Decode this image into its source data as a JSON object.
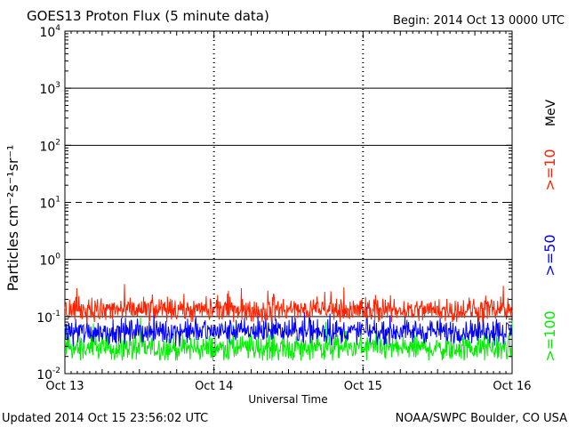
{
  "header": {
    "title": "GOES13 Proton Flux (5 minute data)",
    "begin": "Begin: 2014 Oct 13 0000 UTC"
  },
  "footer": {
    "updated": "Updated 2014 Oct 15 23:56:02 UTC",
    "credit": "NOAA/SWPC Boulder, CO USA"
  },
  "chart_data": {
    "type": "line",
    "title": "GOES13 Proton Flux (5 minute data)",
    "xlabel": "Universal Time",
    "ylabel": "Particles cm⁻²s⁻¹sr⁻¹",
    "yscale": "log",
    "ylim": [
      0.01,
      10000
    ],
    "y_ticks": [
      {
        "base": "10",
        "exp": "4"
      },
      {
        "base": "10",
        "exp": "3"
      },
      {
        "base": "10",
        "exp": "2"
      },
      {
        "base": "10",
        "exp": "1"
      },
      {
        "base": "10",
        "exp": "0"
      },
      {
        "base": "10",
        "exp": "-1"
      },
      {
        "base": "10",
        "exp": "-2"
      }
    ],
    "x_ticks": [
      "Oct 13",
      "Oct 14",
      "Oct 15",
      "Oct 16"
    ],
    "xlim": [
      "2014-10-13",
      "2014-10-16"
    ],
    "unit_label": "MeV",
    "horizontal_lines": [
      {
        "value": 1000,
        "style": "solid"
      },
      {
        "value": 100,
        "style": "solid"
      },
      {
        "value": 10,
        "style": "dashed"
      },
      {
        "value": 1,
        "style": "solid"
      },
      {
        "value": 0.1,
        "style": "solid"
      }
    ],
    "series": [
      {
        "name": ">=10",
        "color": "#ff2200",
        "typical": 0.13,
        "range": [
          0.08,
          0.4
        ]
      },
      {
        "name": ">=50",
        "color": "#0000ff",
        "typical": 0.055,
        "range": [
          0.03,
          0.15
        ]
      },
      {
        "name": ">=100",
        "color": "#00ee00",
        "typical": 0.028,
        "range": [
          0.017,
          0.1
        ]
      }
    ]
  }
}
